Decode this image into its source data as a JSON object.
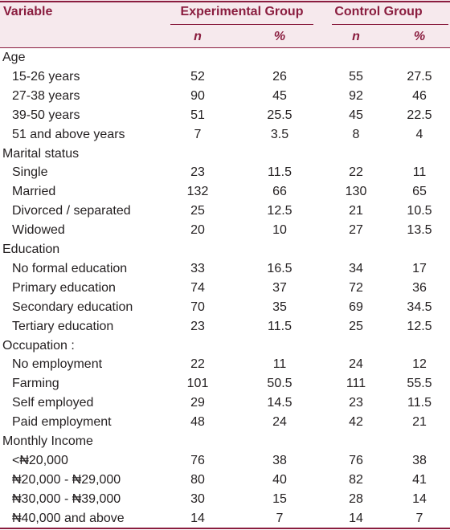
{
  "header": {
    "variable": "Variable",
    "groups": [
      "Experimental Group",
      "Control Group"
    ],
    "subheaders": [
      "n",
      "%",
      "n",
      "%"
    ]
  },
  "sections": [
    {
      "label": "Age",
      "rows": [
        {
          "label": "15-26 years",
          "values": [
            52,
            26,
            55,
            27.5
          ]
        },
        {
          "label": "27-38 years",
          "values": [
            90,
            45,
            92,
            46
          ]
        },
        {
          "label": "39-50 years",
          "values": [
            51,
            25.5,
            45,
            22.5
          ]
        },
        {
          "label": "51 and above years",
          "values": [
            7,
            3.5,
            8,
            4
          ]
        }
      ]
    },
    {
      "label": "Marital status",
      "rows": [
        {
          "label": "Single",
          "values": [
            23,
            11.5,
            22,
            11
          ]
        },
        {
          "label": "Married",
          "values": [
            132,
            66,
            130,
            65
          ]
        },
        {
          "label": "Divorced / separated",
          "values": [
            25,
            12.5,
            21,
            10.5
          ]
        },
        {
          "label": "Widowed",
          "values": [
            20,
            10,
            27,
            13.5
          ]
        }
      ]
    },
    {
      "label": "Education",
      "rows": [
        {
          "label": "No formal education",
          "values": [
            33,
            16.5,
            34,
            17
          ]
        },
        {
          "label": "Primary education",
          "values": [
            74,
            37,
            72,
            36
          ]
        },
        {
          "label": "Secondary education",
          "values": [
            70,
            35,
            69,
            34.5
          ]
        },
        {
          "label": "Tertiary education",
          "values": [
            23,
            11.5,
            25,
            12.5
          ]
        }
      ]
    },
    {
      "label": "Occupation :",
      "rows": [
        {
          "label": "No employment",
          "values": [
            22,
            11,
            24,
            12
          ]
        },
        {
          "label": "Farming",
          "values": [
            101,
            50.5,
            111,
            55.5
          ]
        },
        {
          "label": "Self employed",
          "values": [
            29,
            14.5,
            23,
            11.5
          ]
        },
        {
          "label": "Paid employment",
          "values": [
            48,
            24,
            42,
            21
          ]
        }
      ]
    },
    {
      "label": "Monthly Income",
      "rows": [
        {
          "label": "<₦20,000",
          "values": [
            76,
            38,
            76,
            38
          ]
        },
        {
          "label": "₦20,000 - ₦29,000",
          "values": [
            80,
            40,
            82,
            41
          ]
        },
        {
          "label": "₦30,000 - ₦39,000",
          "values": [
            30,
            15,
            28,
            14
          ]
        },
        {
          "label": "₦40,000 and above",
          "values": [
            14,
            7,
            14,
            7
          ]
        }
      ]
    }
  ]
}
